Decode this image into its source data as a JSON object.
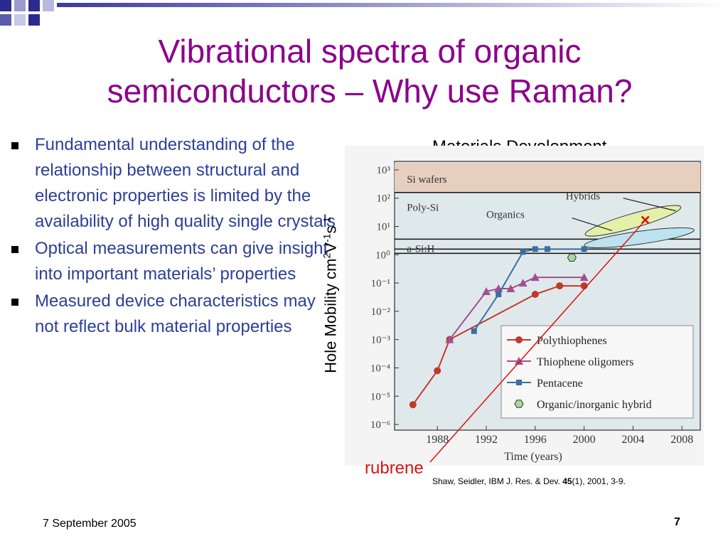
{
  "slide": {
    "title_line1": "Vibrational spectra of organic",
    "title_line2": "semiconductors – Why use Raman?",
    "bullets": [
      "Fundamental understanding of the relationship between structural and electronic properties is limited by the availability of high quality single crystals",
      "Optical measurements can give insight into important materials’ properties",
      "Measured device characteristics may not reflect bulk material properties"
    ],
    "footer_date": "7 September 2005",
    "page_number": "7"
  },
  "figure": {
    "ylabel_main": "Hole Mobility cm",
    "ylabel_sup1": "2",
    "ylabel_mid": "V",
    "ylabel_sup2": "-1",
    "ylabel_end": "s",
    "ylabel_sup3": "-1",
    "rubrene_label": "rubrene",
    "citation_pre": "Shaw, Seidler, IBM J. Res. & Dev. ",
    "citation_bold": "45",
    "citation_post": "(1), 2001, 3-9."
  },
  "chart_data": {
    "type": "line",
    "title": "Materials Development",
    "xlabel": "Time (years)",
    "ylabel": "Hole Mobility cm2V-1s-1",
    "y_scale": "log",
    "x_ticks": [
      "1988",
      "1992",
      "1996",
      "2000",
      "2004",
      "2008"
    ],
    "y_ticks": [
      "10³",
      "10²",
      "10¹",
      "10⁰",
      "10⁻¹",
      "10⁻²",
      "10⁻³",
      "10⁻⁴",
      "10⁻⁵",
      "10⁻⁶"
    ],
    "xlim": [
      1984.5,
      2009.5
    ],
    "ylim": [
      -6.2,
      3.3
    ],
    "region_labels": [
      "Si wafers",
      "Poly-Si",
      "a-Si:H",
      "Organics",
      "Hybrids"
    ],
    "series": [
      {
        "name": "Polythiophenes",
        "color": "#c0392b",
        "marker": "circle",
        "x": [
          1986,
          1988,
          1989,
          1996,
          1998,
          2000
        ],
        "y": [
          -5.3,
          -4.1,
          -3.0,
          -1.4,
          -1.1,
          -1.1
        ]
      },
      {
        "name": "Thiophene oligomers",
        "color": "#a05090",
        "marker": "triangle",
        "x": [
          1989,
          1992,
          1993,
          1994,
          1995,
          1996,
          2000
        ],
        "y": [
          -3.0,
          -1.3,
          -1.2,
          -1.2,
          -1.0,
          -0.8,
          -0.8
        ]
      },
      {
        "name": "Pentacene",
        "color": "#3a6ea5",
        "marker": "square",
        "x": [
          1991,
          1993,
          1995,
          1996,
          1997,
          2000
        ],
        "y": [
          -2.7,
          -1.4,
          0.1,
          0.2,
          0.2,
          0.2
        ]
      },
      {
        "name": "Organic/inorganic hybrid",
        "color": "#5aa06a",
        "marker": "hexagon",
        "x": [
          1999
        ],
        "y": [
          -0.1
        ]
      }
    ],
    "annotation": {
      "label": "rubrene",
      "marker": "×",
      "x": 2005,
      "y": 1.2
    }
  }
}
